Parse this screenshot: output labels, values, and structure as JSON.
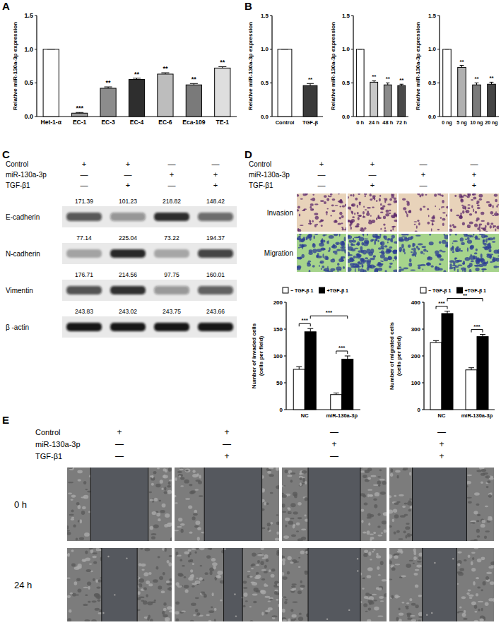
{
  "panel_labels": [
    "A",
    "B",
    "C",
    "D",
    "E"
  ],
  "chart_data": [
    {
      "type": "bar",
      "ylabel": "Relative miR-130a-3p expression",
      "categories": [
        "Het-1-α",
        "EC-1",
        "EC-3",
        "EC-4",
        "EC-6",
        "Eca-109",
        "TE-1"
      ],
      "values": [
        1.0,
        0.05,
        0.42,
        0.55,
        0.63,
        0.47,
        0.72
      ],
      "error": [
        0,
        0.01,
        0.02,
        0.02,
        0.02,
        0.02,
        0.02
      ],
      "colors": [
        "#ffffff",
        "#9a9a9a",
        "#8c8c8c",
        "#2e2e2e",
        "#bdbdbd",
        "#7a7a7a",
        "#dedede"
      ],
      "annotations": [
        null,
        "***",
        "**",
        "**",
        "**",
        "**",
        "**"
      ],
      "ylim": [
        0,
        1.5
      ],
      "yticks": [
        {
          "value": 0,
          "label": "0.0"
        },
        {
          "value": 0.5,
          "label": "0.5"
        },
        {
          "value": 1,
          "label": "1.0"
        },
        {
          "value": 1.5,
          "label": "1.5"
        }
      ]
    },
    {
      "type": "bar",
      "ylabel": "Relative miR-130a-3p expression",
      "categories": [
        "Control",
        "TGF-β"
      ],
      "values": [
        1.0,
        0.46
      ],
      "error": [
        0,
        0.03
      ],
      "colors": [
        "#ffffff",
        "#3a3a3a"
      ],
      "annotations": [
        null,
        "**"
      ],
      "ylim": [
        0,
        1.5
      ],
      "yticks": [
        {
          "value": 0,
          "label": "0.0"
        },
        {
          "value": 0.5,
          "label": "0.5"
        },
        {
          "value": 1,
          "label": "1.0"
        },
        {
          "value": 1.5,
          "label": "1.5"
        }
      ]
    },
    {
      "type": "bar",
      "ylabel": "Relative miR-130a-3p expression",
      "categories": [
        "0 h",
        "24 h",
        "48 h",
        "72 h"
      ],
      "values": [
        1.0,
        0.51,
        0.47,
        0.46
      ],
      "error": [
        0,
        0.02,
        0.03,
        0.02
      ],
      "colors": [
        "#ffffff",
        "#c8c8c8",
        "#8a8a8a",
        "#4a4a4a"
      ],
      "annotations": [
        null,
        "**",
        "**",
        "**"
      ],
      "ylim": [
        0,
        1.5
      ],
      "yticks": [
        {
          "value": 0,
          "label": "0.0"
        },
        {
          "value": 0.5,
          "label": "0.5"
        },
        {
          "value": 1,
          "label": "1.0"
        },
        {
          "value": 1.5,
          "label": "1.5"
        }
      ]
    },
    {
      "type": "bar",
      "ylabel": "Relative miR-130a-3p expression",
      "categories": [
        "0 ng",
        "5 ng",
        "10 ng",
        "20 ng"
      ],
      "values": [
        1.0,
        0.73,
        0.47,
        0.48
      ],
      "error": [
        0,
        0.03,
        0.03,
        0.03
      ],
      "colors": [
        "#ffffff",
        "#b0b0b0",
        "#7a7a7a",
        "#454545"
      ],
      "annotations": [
        null,
        "**",
        "**",
        "**"
      ],
      "ylim": [
        0,
        1.5
      ],
      "yticks": [
        {
          "value": 0,
          "label": "0.0"
        },
        {
          "value": 0.5,
          "label": "0.5"
        },
        {
          "value": 1,
          "label": "1.0"
        },
        {
          "value": 1.5,
          "label": "1.5"
        }
      ]
    },
    {
      "type": "bar",
      "ylabel": [
        "Number of invaded cells",
        "(cells per field)"
      ],
      "categories": [
        "NC",
        "miR-130a-3p"
      ],
      "series": [
        {
          "name": "− TGF-β 1",
          "color": "#ffffff",
          "values": [
            75,
            28
          ],
          "error": [
            5,
            3
          ]
        },
        {
          "name": "+TGF-β 1",
          "color": "#000000",
          "values": [
            145,
            94
          ],
          "error": [
            6,
            6
          ]
        }
      ],
      "legend": "top",
      "comparisons": [
        {
          "pair": [
            [
              0,
              0
            ],
            [
              0,
              1
            ]
          ],
          "label": "***"
        },
        {
          "pair": [
            [
              0,
              1
            ],
            [
              1,
              1
            ]
          ],
          "label": "***"
        },
        {
          "pair": [
            [
              1,
              0
            ],
            [
              1,
              1
            ]
          ],
          "label": "***"
        }
      ],
      "ylim": [
        0,
        200
      ],
      "yticks": [
        0,
        50,
        100,
        150,
        200
      ]
    },
    {
      "type": "bar",
      "ylabel": [
        "Number of migrated cells",
        "(cells per field)"
      ],
      "categories": [
        "NC",
        "miR-130a-3p"
      ],
      "series": [
        {
          "name": "− TGF-β 1",
          "color": "#ffffff",
          "values": [
            250,
            148
          ],
          "error": [
            7,
            8
          ]
        },
        {
          "name": "+TGF-β 1",
          "color": "#000000",
          "values": [
            358,
            272
          ],
          "error": [
            9,
            8
          ]
        }
      ],
      "legend": "top",
      "comparisons": [
        {
          "pair": [
            [
              0,
              0
            ],
            [
              0,
              1
            ]
          ],
          "label": "***"
        },
        {
          "pair": [
            [
              0,
              1
            ],
            [
              1,
              1
            ]
          ],
          "label": "**"
        },
        {
          "pair": [
            [
              1,
              0
            ],
            [
              1,
              1
            ]
          ],
          "label": "***"
        }
      ],
      "ylim": [
        0,
        400
      ],
      "yticks": [
        0,
        100,
        200,
        300,
        400
      ]
    }
  ],
  "western_blot": {
    "conditions": [
      {
        "label": "Control",
        "signs": [
          "+",
          "+",
          "—",
          "—"
        ]
      },
      {
        "label": "miR-130a-3p",
        "signs": [
          "—",
          "—",
          "+",
          "+"
        ]
      },
      {
        "label": "TGF-β1",
        "signs": [
          "—",
          "+",
          "—",
          "+"
        ]
      }
    ],
    "proteins": [
      {
        "name": "E-cadherin",
        "values": [
          171.39,
          101.23,
          218.82,
          148.42
        ]
      },
      {
        "name": "N-cadherin",
        "values": [
          77.14,
          225.04,
          73.22,
          194.37
        ]
      },
      {
        "name": "Vimentin",
        "values": [
          176.71,
          214.56,
          97.75,
          160.01
        ]
      },
      {
        "name": "β -actin",
        "values": [
          243.83,
          243.02,
          243.75,
          243.66
        ]
      }
    ]
  },
  "transwell": {
    "conditions": [
      {
        "label": "Control",
        "signs": [
          "+",
          "+",
          "—",
          "—"
        ]
      },
      {
        "label": "miR-130a-3p",
        "signs": [
          "—",
          "—",
          "+",
          "+"
        ]
      },
      {
        "label": "TGF-β1",
        "signs": [
          "—",
          "+",
          "—",
          "+"
        ]
      }
    ],
    "rows": [
      "Invasion",
      "Migration"
    ]
  },
  "wound_healing": {
    "conditions": [
      {
        "label": "Control",
        "signs": [
          "+",
          "+",
          "—",
          "—"
        ]
      },
      {
        "label": "miR-130a-3p",
        "signs": [
          "—",
          "—",
          "+",
          "+"
        ]
      },
      {
        "label": "TGF-β1",
        "signs": [
          "—",
          "+",
          "—",
          "+"
        ]
      }
    ],
    "rows": [
      "0 h",
      "24 h"
    ]
  }
}
